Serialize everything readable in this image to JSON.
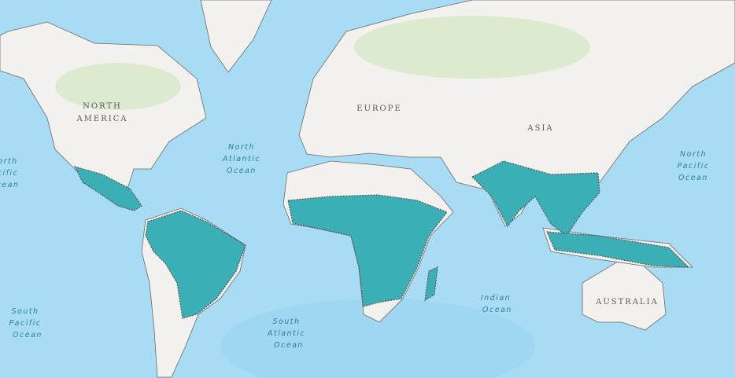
{
  "map": {
    "colors": {
      "ocean": "#a8dcf5",
      "land": "#f2f1ee",
      "highlight": "#3aafb5",
      "border": "#555555"
    },
    "continent_labels": {
      "north_america_line1": "NORTH",
      "north_america_line2": "AMERICA",
      "europe": "EUROPE",
      "asia": "ASIA",
      "australia": "AUSTRALIA"
    },
    "ocean_labels": {
      "north_atlantic": [
        "North",
        "Atlantic",
        "Ocean"
      ],
      "north_pacific_right": [
        "North",
        "Pacific",
        "Ocean"
      ],
      "north_pacific_left": [
        "orth",
        "cific",
        "cean"
      ],
      "south_pacific": [
        "South",
        "Pacific",
        "Ocean"
      ],
      "south_atlantic": [
        "South",
        "Atlantic",
        "Ocean"
      ],
      "indian": [
        "Indian",
        "Ocean"
      ]
    }
  }
}
